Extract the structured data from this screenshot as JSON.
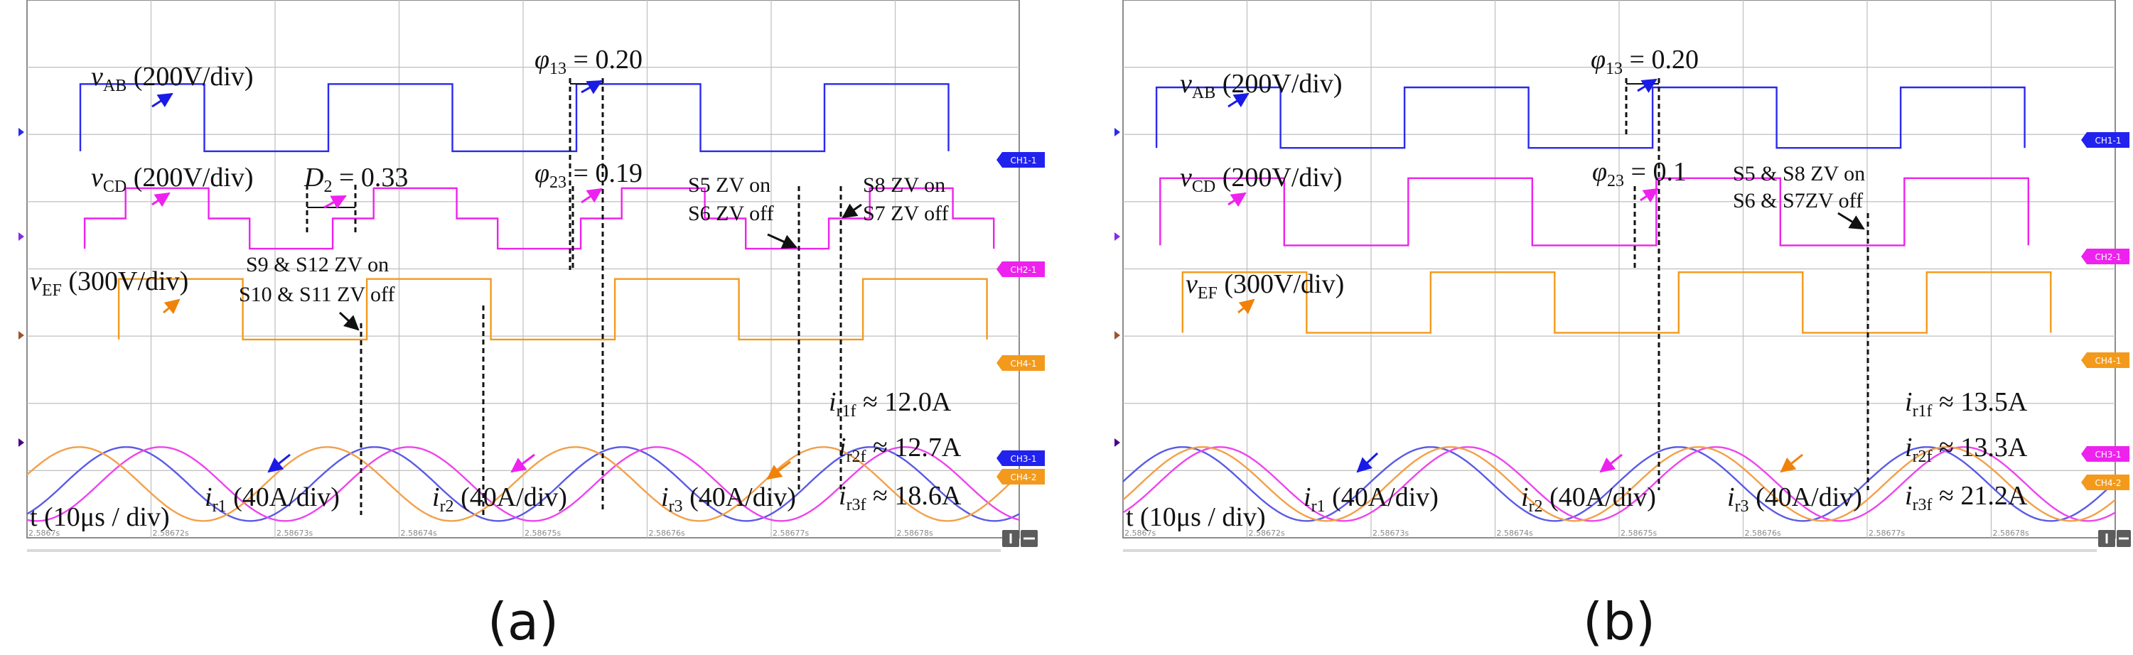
{
  "colors": {
    "vAB": "#2a2aee",
    "vCD": "#ee22ee",
    "vEF": "#f39a1c",
    "ir1": "#5a5ae6",
    "ir2": "#ee44ee",
    "ir3": "#f3a048",
    "grid": "#bfbfbf",
    "frame": "#8c8c8c",
    "bg": "#ffffff",
    "text": "#111111"
  },
  "chart_data": [
    {
      "id": "a",
      "type": "line",
      "caption": "(a)",
      "time_labels": [
        "2.5867s",
        "2.58672s",
        "2.58673s",
        "2.58674s",
        "2.58675s",
        "2.58676s",
        "2.58677s",
        "2.58678s"
      ],
      "x_range_us": [
        0,
        80
      ],
      "y_range_div": [
        0,
        8
      ],
      "series": [
        {
          "name": "vAB",
          "kind": "square",
          "level": 6.25,
          "amplitude": 0.5,
          "period_us": 20,
          "phase_us": 4.3,
          "duty": 0.5
        },
        {
          "name": "vCD",
          "kind": "stepped",
          "level": 4.75,
          "amplitude": 0.45,
          "period_us": 20,
          "phase_us": 6.3,
          "duty": 0.5,
          "zero_fraction": 0.33
        },
        {
          "name": "vEF",
          "kind": "square",
          "level": 3.4,
          "amplitude": 0.45,
          "period_us": 20,
          "phase_us": 7.4,
          "duty": 0.5
        },
        {
          "name": "ir1",
          "kind": "sine",
          "level": 0.8,
          "amplitude": 0.55,
          "period_us": 20,
          "phase_us": 3.0
        },
        {
          "name": "ir2",
          "kind": "sine",
          "level": 0.8,
          "amplitude": 0.55,
          "period_us": 20,
          "phase_us": 5.8
        },
        {
          "name": "ir3",
          "kind": "sine",
          "level": 0.8,
          "amplitude": 0.55,
          "period_us": 20,
          "phase_us": -0.8
        }
      ],
      "annotations": {
        "vAB": {
          "sym": "v",
          "sub": "AB",
          "rest": " (200V/div)"
        },
        "vCD": {
          "sym": "v",
          "sub": "CD",
          "rest": " (200V/div)"
        },
        "vEF": {
          "sym": "v",
          "sub": "EF",
          "rest": " (300V/div)"
        },
        "D2": {
          "sym": "D",
          "sub": "2",
          "rest": " = 0.33"
        },
        "phi13": {
          "sym": "φ",
          "sub": "13",
          "rest": " = 0.20"
        },
        "phi23": {
          "sym": "φ",
          "sub": "23",
          "rest": " = 0.19"
        },
        "s9_on": "S9 & S12 ZV on",
        "s10_off": "S10 & S11 ZV off",
        "s5_on": "S5 ZV on",
        "s6_off": "S6 ZV off",
        "s8_on": "S8 ZV on",
        "s7_off": "S7 ZV off",
        "ir1f": {
          "sym": "i",
          "sub": "r1f",
          "rest": " ≈ 12.0A"
        },
        "ir2f": {
          "sym": "i",
          "sub": "r2f",
          "rest": " ≈ 12.7A"
        },
        "ir3f": {
          "sym": "i",
          "sub": "r3f",
          "rest": " ≈ 18.6A"
        },
        "ir1": {
          "sym": "i",
          "sub": "r1",
          "rest": " (40A/div)"
        },
        "ir2": {
          "sym": "i",
          "sub": "r2",
          "rest": " (40A/div)"
        },
        "ir3": {
          "sym": "i",
          "sub": "r3",
          "rest": " (40A/div)"
        },
        "time": "t (10μs / div)"
      }
    },
    {
      "id": "b",
      "type": "line",
      "caption": "(b)",
      "time_labels": [
        "2.5867s",
        "2.58672s",
        "2.58673s",
        "2.58674s",
        "2.58675s",
        "2.58676s",
        "2.58677s",
        "2.58678s"
      ],
      "x_range_us": [
        0,
        80
      ],
      "y_range_div": [
        0,
        8
      ],
      "series": [
        {
          "name": "vAB",
          "kind": "square",
          "level": 6.25,
          "amplitude": 0.45,
          "period_us": 20,
          "phase_us": 2.7,
          "duty": 0.5
        },
        {
          "name": "vCD",
          "kind": "square",
          "level": 4.85,
          "amplitude": 0.5,
          "period_us": 20,
          "phase_us": 3.0,
          "duty": 0.5
        },
        {
          "name": "vEF",
          "kind": "square",
          "level": 3.5,
          "amplitude": 0.45,
          "period_us": 20,
          "phase_us": 4.8,
          "duty": 0.5
        },
        {
          "name": "ir1",
          "kind": "sine",
          "level": 0.8,
          "amplitude": 0.55,
          "period_us": 20,
          "phase_us": -0.2
        },
        {
          "name": "ir2",
          "kind": "sine",
          "level": 0.8,
          "amplitude": 0.55,
          "period_us": 20,
          "phase_us": 2.8
        },
        {
          "name": "ir3",
          "kind": "sine",
          "level": 0.8,
          "amplitude": 0.55,
          "period_us": 20,
          "phase_us": 1.4
        }
      ],
      "annotations": {
        "vAB": {
          "sym": "v",
          "sub": "AB",
          "rest": " (200V/div)"
        },
        "vCD": {
          "sym": "v",
          "sub": "CD",
          "rest": " (200V/div)"
        },
        "vEF": {
          "sym": "v",
          "sub": "EF",
          "rest": " (300V/div)"
        },
        "phi13": {
          "sym": "φ",
          "sub": "13",
          "rest": " = 0.20"
        },
        "phi23": {
          "sym": "φ",
          "sub": "23",
          "rest": " = 0.1"
        },
        "s5_on": "S5 & S8 ZV on",
        "s6_off": "S6 & S7ZV off",
        "ir1f": {
          "sym": "i",
          "sub": "r1f",
          "rest": " ≈ 13.5A"
        },
        "ir2f": {
          "sym": "i",
          "sub": "r2f",
          "rest": " ≈ 13.3A"
        },
        "ir3f": {
          "sym": "i",
          "sub": "r3f",
          "rest": " ≈ 21.2A"
        },
        "ir1": {
          "sym": "i",
          "sub": "r1",
          "rest": " (40A/div)"
        },
        "ir2": {
          "sym": "i",
          "sub": "r2",
          "rest": " (40A/div)"
        },
        "ir3": {
          "sym": "i",
          "sub": "r3",
          "rest": " (40A/div)"
        },
        "time": "t (10μs / div)"
      }
    }
  ],
  "badges": [
    "CH1-1",
    "CH2-1",
    "CH4-1",
    "CH3-1",
    "CH4-2"
  ]
}
